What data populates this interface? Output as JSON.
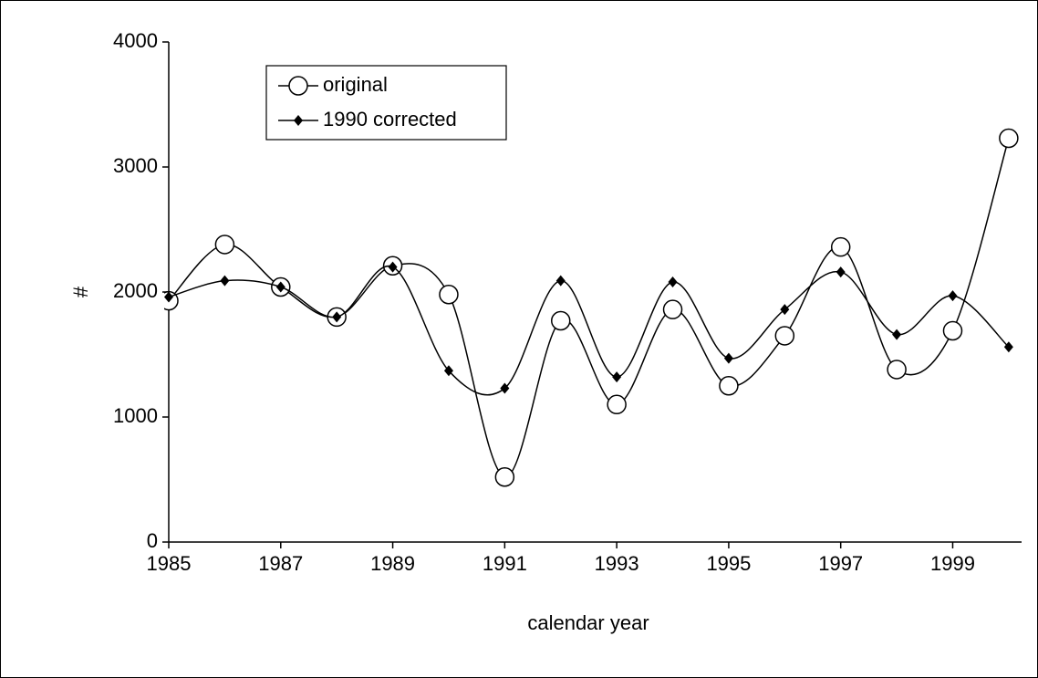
{
  "chart_data": {
    "type": "line",
    "x_label": "calendar year",
    "y_label": "#",
    "x": [
      1985,
      1986,
      1987,
      1988,
      1989,
      1990,
      1991,
      1992,
      1993,
      1994,
      1995,
      1996,
      1997,
      1998,
      1999,
      2000
    ],
    "series": [
      {
        "name": "original",
        "color": "#000000",
        "marker": "circle",
        "values": [
          1930,
          2380,
          2040,
          1800,
          2210,
          1980,
          520,
          1770,
          1100,
          1860,
          1250,
          1650,
          2360,
          1380,
          1690,
          3230
        ]
      },
      {
        "name": "1990 corrected",
        "color": "#000000",
        "marker": "diamond",
        "values": [
          1960,
          2090,
          2040,
          1800,
          2200,
          1370,
          1230,
          2090,
          1320,
          2080,
          1470,
          1860,
          2160,
          1660,
          1970,
          1560
        ]
      }
    ],
    "xlim": [
      1985,
      2000.23
    ],
    "xticks": [
      1985,
      1987,
      1989,
      1991,
      1993,
      1995,
      1997,
      1999
    ],
    "ylim": [
      0,
      4000
    ],
    "yticks": [
      0,
      1000,
      2000,
      3000,
      4000
    ],
    "smooth": true,
    "legend": "upper-left"
  }
}
